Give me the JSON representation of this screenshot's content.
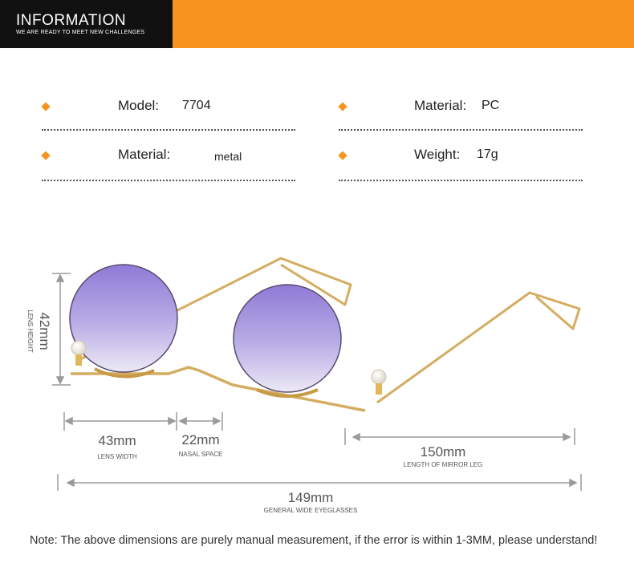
{
  "banner": {
    "title": "INFORMATION",
    "subtitle": "WE ARE READY TO MEET NEW CHALLENGES",
    "colors": {
      "left": "#111111",
      "right": "#f7931e"
    }
  },
  "specs": {
    "model_label": "Model:",
    "model_value": "7704",
    "frame_material_label": "Material:",
    "frame_material_value": "metal",
    "lens_material_label": "Material:",
    "lens_material_value": "PC",
    "weight_label": "Weight:",
    "weight_value": "17g",
    "bullet_icon": "orange-diamond-icon"
  },
  "dimensions": {
    "lens_height": {
      "value": "42mm",
      "label": "LENS HEIGHT"
    },
    "lens_width": {
      "value": "43mm",
      "label": "LENS WIDTH"
    },
    "nasal_space": {
      "value": "22mm",
      "label": "NASAL SPACE"
    },
    "temple_length": {
      "value": "150mm",
      "label": "LENGTH OF MIRROR LEG"
    },
    "overall_width": {
      "value": "149mm",
      "label": "GENERAL WIDE EYEGLASSES"
    }
  },
  "product": {
    "lens_color": "#a08fd8",
    "frame_color": "#d9b36a"
  },
  "note": "Note: The above dimensions are purely manual measurement, if the error is within 1-3MM, please understand!"
}
